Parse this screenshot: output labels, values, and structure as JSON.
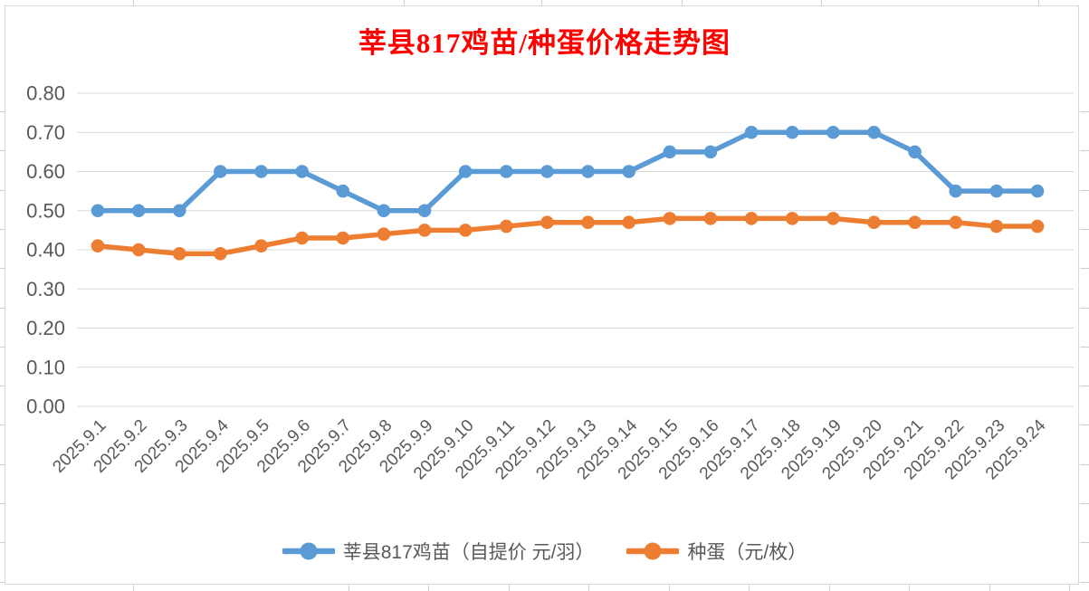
{
  "title": {
    "text": "莘县817鸡苗/种蛋价格走势图",
    "color": "#FF0000"
  },
  "chart_data": {
    "type": "line",
    "title": "莘县817鸡苗/种蛋价格走势图",
    "xlabel": "",
    "ylabel": "",
    "categories": [
      "2025.9.1",
      "2025.9.2",
      "2025.9.3",
      "2025.9.4",
      "2025.9.5",
      "2025.9.6",
      "2025.9.7",
      "2025.9.8",
      "2025.9.9",
      "2025.9.10",
      "2025.9.11",
      "2025.9.12",
      "2025.9.13",
      "2025.9.14",
      "2025.9.15",
      "2025.9.16",
      "2025.9.17",
      "2025.9.18",
      "2025.9.19",
      "2025.9.20",
      "2025.9.21",
      "2025.9.22",
      "2025.9.23",
      "2025.9.24"
    ],
    "series": [
      {
        "name": "莘县817鸡苗（自提价 元/羽）",
        "color": "#5B9BD5",
        "values": [
          0.5,
          0.5,
          0.5,
          0.6,
          0.6,
          0.6,
          0.55,
          0.5,
          0.5,
          0.6,
          0.6,
          0.6,
          0.6,
          0.6,
          0.65,
          0.65,
          0.7,
          0.7,
          0.7,
          0.7,
          0.65,
          0.55,
          0.55,
          0.55
        ]
      },
      {
        "name": "种蛋（元/枚）",
        "color": "#ED7D31",
        "values": [
          0.41,
          0.4,
          0.39,
          0.39,
          0.41,
          0.43,
          0.43,
          0.44,
          0.45,
          0.45,
          0.46,
          0.47,
          0.47,
          0.47,
          0.48,
          0.48,
          0.48,
          0.48,
          0.48,
          0.47,
          0.47,
          0.47,
          0.46,
          0.46
        ]
      }
    ],
    "ylim": [
      0.0,
      0.8
    ],
    "ytick_labels": [
      "0.00",
      "0.10",
      "0.20",
      "0.30",
      "0.40",
      "0.50",
      "0.60",
      "0.70",
      "0.80"
    ],
    "grid": true,
    "legend_position": "bottom",
    "colors": {
      "axis_text": "#595959",
      "gridline": "#D9D9D9",
      "chart_border": "#D9D9D9",
      "worksheet_tick": "#D0CECE",
      "background": "#FFFFFF"
    }
  }
}
